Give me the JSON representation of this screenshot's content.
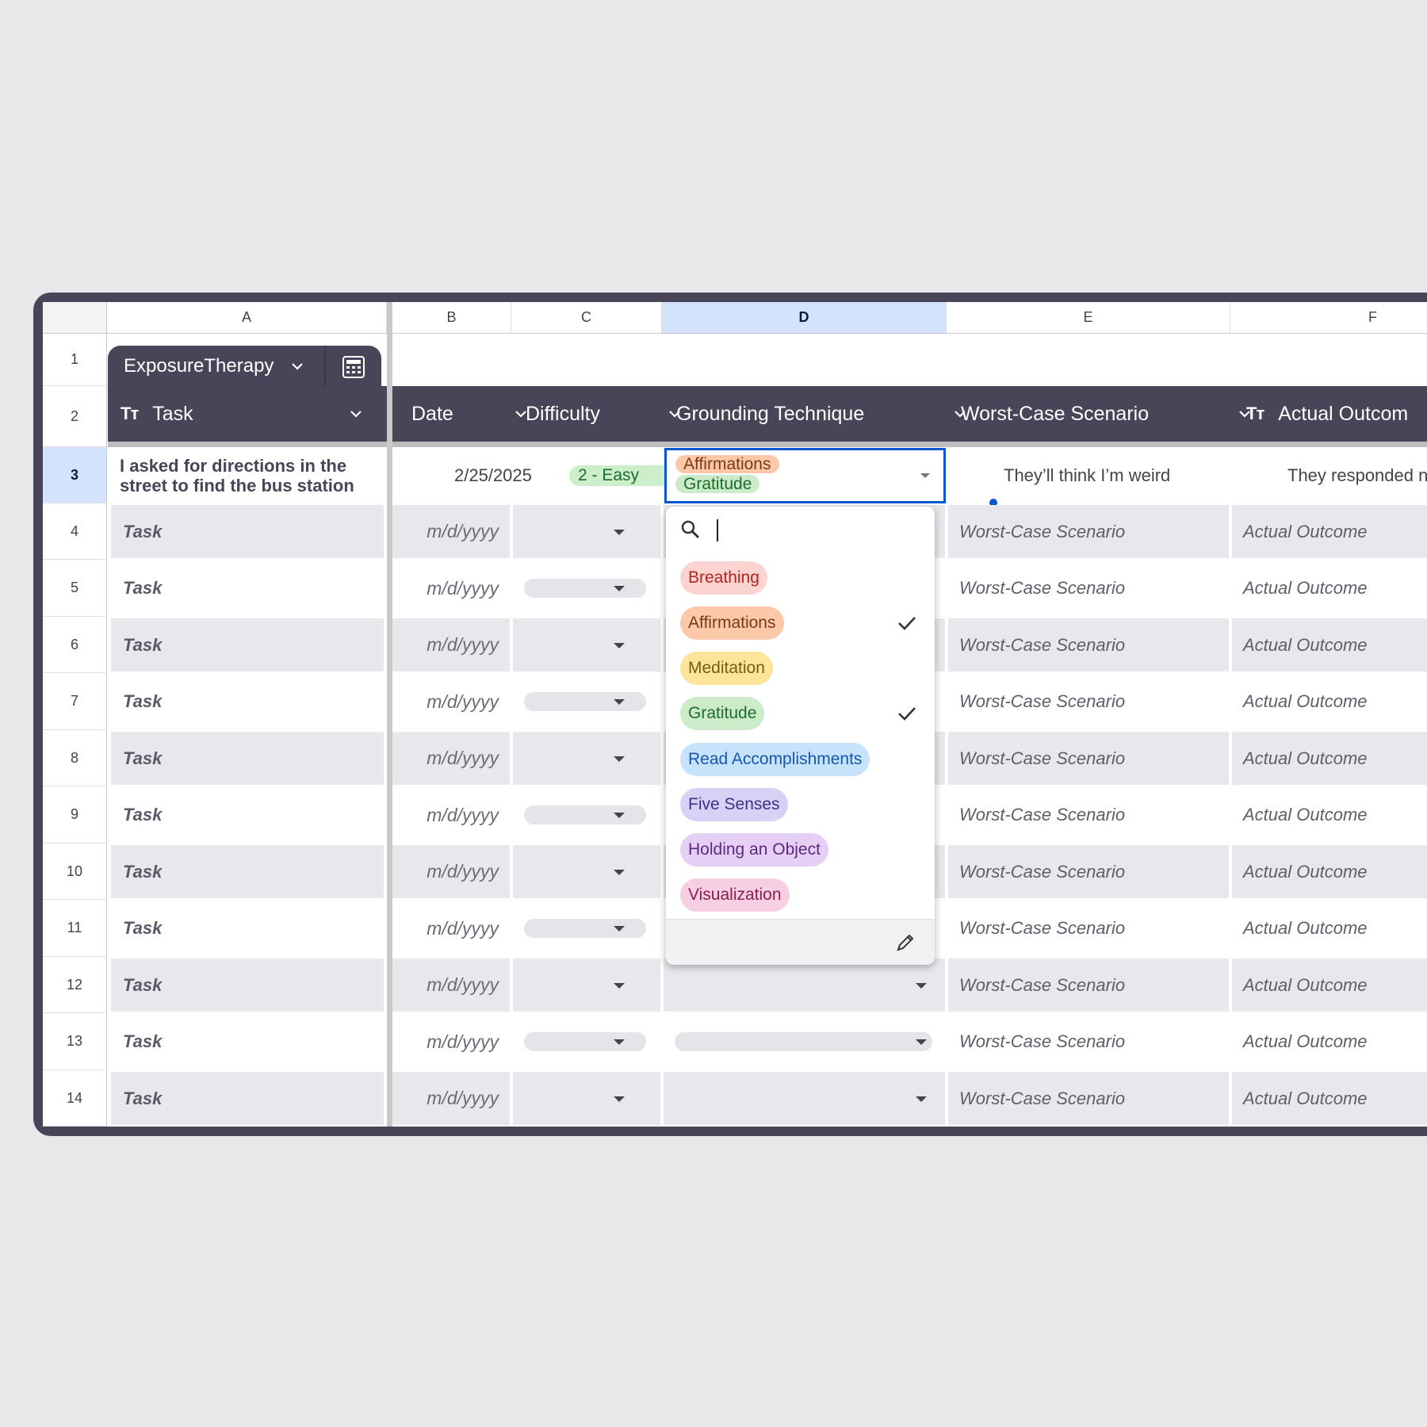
{
  "columns": [
    "A",
    "B",
    "C",
    "D",
    "E",
    "F"
  ],
  "row_numbers": [
    "1",
    "2",
    "3",
    "4",
    "5",
    "6",
    "7",
    "8",
    "9",
    "10",
    "11",
    "12",
    "13",
    "14"
  ],
  "table_tab": {
    "name": "ExposureTherapy"
  },
  "headers": {
    "task": "Task",
    "date": "Date",
    "difficulty": "Difficulty",
    "grounding": "Grounding Technique",
    "worst": "Worst-Case Scenario",
    "actual": "Actual Outcom",
    "text_type_icon": "Tт"
  },
  "row3": {
    "task": "I asked for directions in the street to find the bus station",
    "date": "2/25/2025",
    "difficulty": "2 - Easy",
    "grounding": [
      "Affirmations",
      "Gratitude"
    ],
    "worst": "They’ll think I’m weird",
    "actual": "They responded norm"
  },
  "placeholders": {
    "task": "Task",
    "date": "m/d/yyyy",
    "worst": "Worst-Case Scenario",
    "actual": "Actual Outcome"
  },
  "dropdown": {
    "search_value": "",
    "options": [
      {
        "label": "Breathing",
        "checked": false,
        "bg": "#fbd3d0",
        "fg": "#b3261e"
      },
      {
        "label": "Affirmations",
        "checked": true,
        "bg": "#fdc7a9",
        "fg": "#7a3b14"
      },
      {
        "label": "Meditation",
        "checked": false,
        "bg": "#fde49b",
        "fg": "#7a5b0a"
      },
      {
        "label": "Gratitude",
        "checked": true,
        "bg": "#ccebc8",
        "fg": "#1e6b2e"
      },
      {
        "label": "Read Accomplishments",
        "checked": false,
        "bg": "#c6e3fb",
        "fg": "#1557b0"
      },
      {
        "label": "Five Senses",
        "checked": false,
        "bg": "#d6d2f5",
        "fg": "#3d2f8a"
      },
      {
        "label": "Holding an Object",
        "checked": false,
        "bg": "#e6cff5",
        "fg": "#5c2a80"
      },
      {
        "label": "Visualization",
        "checked": false,
        "bg": "#f7cfe3",
        "fg": "#8a1f50"
      }
    ]
  },
  "colors": {
    "header_bg": "#4a4458",
    "selection": "#0b57d0",
    "selected_header": "#d3e3fd",
    "alt_row": "#e8e8ec"
  }
}
